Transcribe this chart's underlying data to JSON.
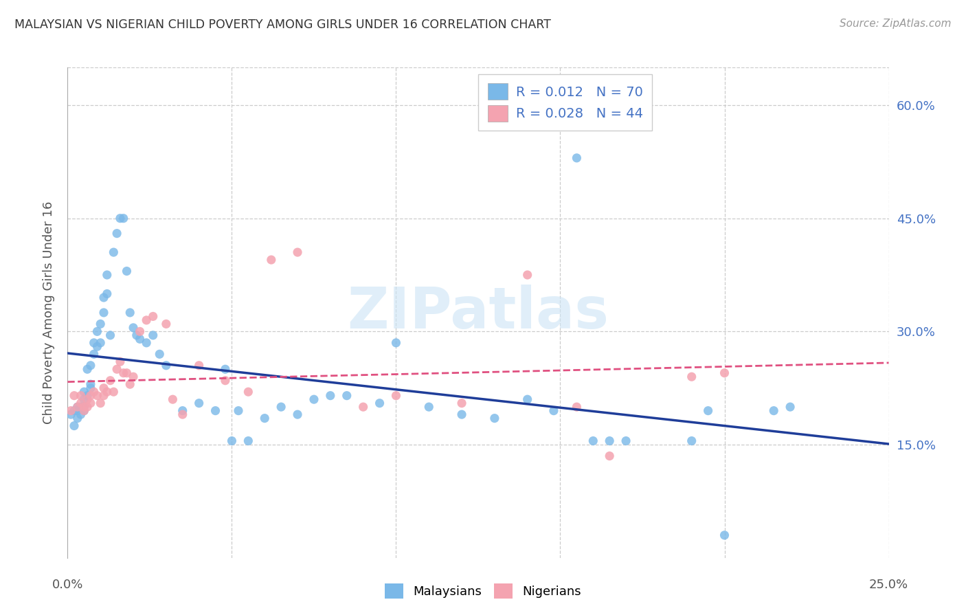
{
  "title": "MALAYSIAN VS NIGERIAN CHILD POVERTY AMONG GIRLS UNDER 16 CORRELATION CHART",
  "source": "Source: ZipAtlas.com",
  "ylabel": "Child Poverty Among Girls Under 16",
  "xlim": [
    0.0,
    0.25
  ],
  "ylim": [
    0.0,
    0.65
  ],
  "yticks": [
    0.15,
    0.3,
    0.45,
    0.6
  ],
  "ytick_labels": [
    "15.0%",
    "30.0%",
    "45.0%",
    "60.0%"
  ],
  "xticks": [
    0.0,
    0.05,
    0.1,
    0.15,
    0.2,
    0.25
  ],
  "malaysia_color": "#7ab8e8",
  "nigeria_color": "#f4a3b0",
  "trend_malaysia_color": "#1f3d99",
  "trend_nigeria_color": "#e05080",
  "legend_R1": "0.012",
  "legend_N1": "70",
  "legend_R2": "0.028",
  "legend_N2": "44",
  "watermark": "ZIPatlas",
  "malaysia_x": [
    0.001,
    0.002,
    0.002,
    0.003,
    0.003,
    0.003,
    0.004,
    0.004,
    0.005,
    0.005,
    0.005,
    0.005,
    0.006,
    0.006,
    0.007,
    0.007,
    0.007,
    0.008,
    0.008,
    0.009,
    0.009,
    0.01,
    0.01,
    0.011,
    0.011,
    0.012,
    0.012,
    0.013,
    0.014,
    0.015,
    0.016,
    0.017,
    0.018,
    0.019,
    0.02,
    0.021,
    0.022,
    0.024,
    0.026,
    0.028,
    0.03,
    0.035,
    0.04,
    0.045,
    0.048,
    0.05,
    0.052,
    0.055,
    0.06,
    0.065,
    0.07,
    0.075,
    0.08,
    0.085,
    0.095,
    0.1,
    0.11,
    0.12,
    0.13,
    0.14,
    0.148,
    0.155,
    0.16,
    0.165,
    0.17,
    0.19,
    0.195,
    0.2,
    0.215,
    0.22
  ],
  "malaysia_y": [
    0.19,
    0.195,
    0.175,
    0.2,
    0.195,
    0.185,
    0.2,
    0.19,
    0.22,
    0.21,
    0.2,
    0.195,
    0.25,
    0.215,
    0.255,
    0.23,
    0.225,
    0.285,
    0.27,
    0.3,
    0.28,
    0.31,
    0.285,
    0.325,
    0.345,
    0.35,
    0.375,
    0.295,
    0.405,
    0.43,
    0.45,
    0.45,
    0.38,
    0.325,
    0.305,
    0.295,
    0.29,
    0.285,
    0.295,
    0.27,
    0.255,
    0.195,
    0.205,
    0.195,
    0.25,
    0.155,
    0.195,
    0.155,
    0.185,
    0.2,
    0.19,
    0.21,
    0.215,
    0.215,
    0.205,
    0.285,
    0.2,
    0.19,
    0.185,
    0.21,
    0.195,
    0.53,
    0.155,
    0.155,
    0.155,
    0.155,
    0.195,
    0.03,
    0.195,
    0.2
  ],
  "nigeria_x": [
    0.001,
    0.002,
    0.003,
    0.004,
    0.004,
    0.005,
    0.005,
    0.006,
    0.006,
    0.007,
    0.007,
    0.008,
    0.009,
    0.01,
    0.011,
    0.011,
    0.012,
    0.013,
    0.014,
    0.015,
    0.016,
    0.017,
    0.018,
    0.019,
    0.02,
    0.022,
    0.024,
    0.026,
    0.03,
    0.032,
    0.035,
    0.04,
    0.048,
    0.055,
    0.062,
    0.07,
    0.09,
    0.1,
    0.12,
    0.14,
    0.155,
    0.165,
    0.19,
    0.2
  ],
  "nigeria_y": [
    0.195,
    0.215,
    0.2,
    0.215,
    0.205,
    0.2,
    0.195,
    0.21,
    0.2,
    0.215,
    0.205,
    0.22,
    0.215,
    0.205,
    0.215,
    0.225,
    0.22,
    0.235,
    0.22,
    0.25,
    0.26,
    0.245,
    0.245,
    0.23,
    0.24,
    0.3,
    0.315,
    0.32,
    0.31,
    0.21,
    0.19,
    0.255,
    0.235,
    0.22,
    0.395,
    0.405,
    0.2,
    0.215,
    0.205,
    0.375,
    0.2,
    0.135,
    0.24,
    0.245
  ]
}
